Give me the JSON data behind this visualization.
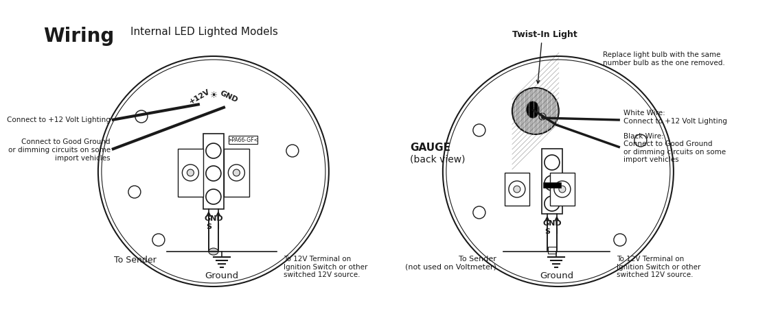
{
  "bg_color": "#ffffff",
  "line_color": "#1a1a1a",
  "gray_fill": "#b0b0b0",
  "light_gray": "#d0d0d0",
  "med_gray": "#909090",
  "title_wiring": "Wiring",
  "title_led": "Internal LED Lighted Models",
  "title_gauge": "GAUGE\n(back view)",
  "left_labels": {
    "connect_12v": "Connect to +12 Volt Lighting",
    "connect_gnd": "Connect to Good Ground\nor dimming circuits on some\nimport vehicles"
  },
  "bottom_labels_left": {
    "sender": "To Sender",
    "ground": "Ground",
    "ignition": "To 12V Terminal on\nIgnition Switch or other\nswitched 12V source."
  },
  "right_labels": {
    "twist_light": "Twist-In Light",
    "replace_bulb": "Replace light bulb with the same\nnumber bulb as the one removed.",
    "white_wire": "White Wire:\nConnect to +12 Volt Lighting",
    "black_wire": "Black Wire:\nConnect to Good Ground\nor dimming circuits on some\nimport vehicles"
  },
  "bottom_labels_right": {
    "sender": "To Sender\n(not used on Voltmeter)",
    "ground": "Ground",
    "ignition": "To 12V Terminal on\nIgnition Switch or other\nswitched 12V source."
  }
}
